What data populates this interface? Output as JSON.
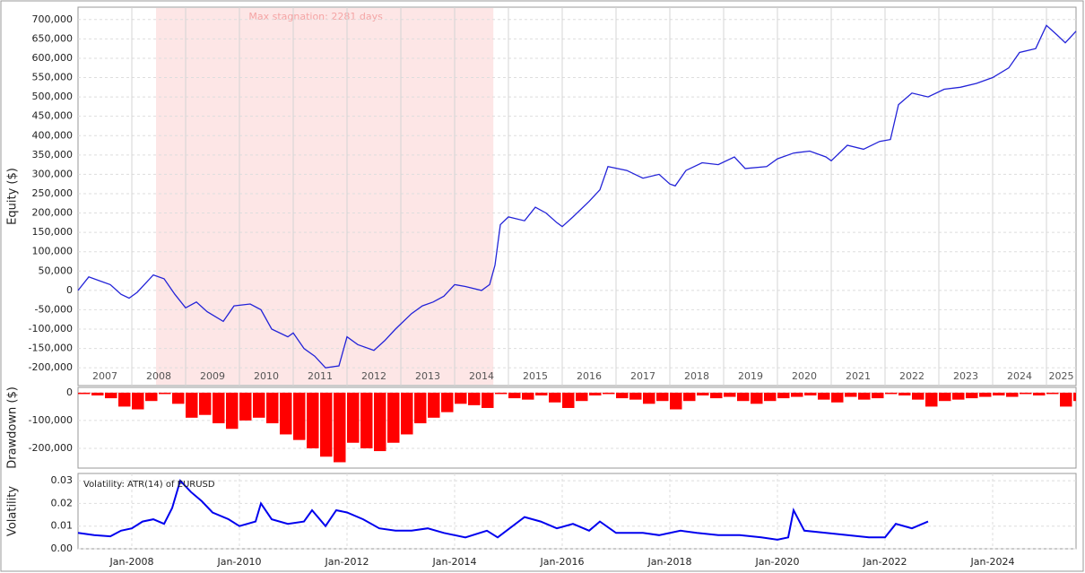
{
  "chart_data": [
    {
      "type": "line",
      "y_label": "Equity ($)",
      "annotation": "Max stagnation: 2281 days",
      "stagnation_span": [
        2008.45,
        2014.72
      ],
      "stagnation_color": "#fde6e6",
      "xlim": [
        2007.0,
        2025.55
      ],
      "xticks": [
        2007,
        2008,
        2009,
        2010,
        2011,
        2012,
        2013,
        2014,
        2015,
        2016,
        2017,
        2018,
        2019,
        2020,
        2021,
        2022,
        2023,
        2024,
        2025
      ],
      "ylim": [
        -246000,
        732000
      ],
      "yticks": [
        {
          "value": -200000,
          "label": "-200,000"
        },
        {
          "value": -150000,
          "label": "-150,000"
        },
        {
          "value": -100000,
          "label": "-100,000"
        },
        {
          "value": -50000,
          "label": "-50,000"
        },
        0,
        {
          "value": 50000,
          "label": "50,000"
        },
        {
          "value": 100000,
          "label": "100,000"
        },
        {
          "value": 150000,
          "label": "150,000"
        },
        {
          "value": 200000,
          "label": "200,000"
        },
        {
          "value": 250000,
          "label": "250,000"
        },
        {
          "value": 300000,
          "label": "300,000"
        },
        {
          "value": 350000,
          "label": "350,000"
        },
        {
          "value": 400000,
          "label": "400,000"
        },
        {
          "value": 450000,
          "label": "450,000"
        },
        {
          "value": 500000,
          "label": "500,000"
        },
        {
          "value": 550000,
          "label": "550,000"
        },
        {
          "value": 600000,
          "label": "600,000"
        },
        {
          "value": 650000,
          "label": "650,000"
        },
        {
          "value": 700000,
          "label": "700,000"
        }
      ],
      "grid": true,
      "x": [
        2007.0,
        2007.2,
        2007.4,
        2007.6,
        2007.8,
        2007.95,
        2008.1,
        2008.4,
        2008.6,
        2008.8,
        2009.0,
        2009.2,
        2009.4,
        2009.7,
        2009.9,
        2010.2,
        2010.4,
        2010.6,
        2010.9,
        2011.0,
        2011.2,
        2011.4,
        2011.6,
        2011.85,
        2012.0,
        2012.2,
        2012.5,
        2012.7,
        2012.9,
        2013.2,
        2013.4,
        2013.6,
        2013.8,
        2014.0,
        2014.2,
        2014.5,
        2014.65,
        2014.75,
        2014.85,
        2015.0,
        2015.3,
        2015.5,
        2015.7,
        2015.9,
        2016.0,
        2016.2,
        2016.5,
        2016.7,
        2016.85,
        2017.2,
        2017.5,
        2017.8,
        2018.0,
        2018.1,
        2018.3,
        2018.6,
        2018.9,
        2019.2,
        2019.4,
        2019.8,
        2020.0,
        2020.3,
        2020.6,
        2020.9,
        2021.0,
        2021.3,
        2021.6,
        2021.9,
        2022.1,
        2022.25,
        2022.5,
        2022.8,
        2023.1,
        2023.4,
        2023.7,
        2024.0,
        2024.3,
        2024.5,
        2024.8,
        2025.0,
        2025.2,
        2025.35,
        2025.55
      ],
      "series": [
        {
          "color": "#2323d8",
          "values": [
            0,
            35000,
            25000,
            15000,
            -10000,
            -20000,
            -5000,
            40000,
            30000,
            -10000,
            -45000,
            -30000,
            -55000,
            -80000,
            -40000,
            -35000,
            -50000,
            -100000,
            -120000,
            -110000,
            -150000,
            -170000,
            -200000,
            -195000,
            -120000,
            -140000,
            -155000,
            -130000,
            -100000,
            -60000,
            -40000,
            -30000,
            -15000,
            15000,
            10000,
            0,
            15000,
            65000,
            170000,
            190000,
            180000,
            215000,
            200000,
            175000,
            165000,
            190000,
            230000,
            260000,
            320000,
            310000,
            290000,
            300000,
            275000,
            270000,
            310000,
            330000,
            325000,
            345000,
            315000,
            320000,
            340000,
            355000,
            360000,
            345000,
            335000,
            375000,
            365000,
            385000,
            390000,
            480000,
            510000,
            500000,
            520000,
            525000,
            535000,
            550000,
            575000,
            615000,
            625000,
            685000,
            660000,
            640000,
            670000
          ]
        }
      ]
    },
    {
      "type": "bar",
      "y_label": "Drawdown ($)",
      "color": "#ff0000",
      "xlim": [
        2007.0,
        2025.55
      ],
      "ylim": [
        -271000,
        19000
      ],
      "yticks": [
        {
          "value": -200000,
          "label": "-200,000"
        },
        {
          "value": -100000,
          "label": "-100,000"
        },
        0
      ],
      "grid": true,
      "x": [
        2007.0,
        2007.25,
        2007.5,
        2007.75,
        2008.0,
        2008.25,
        2008.5,
        2008.75,
        2009.0,
        2009.25,
        2009.5,
        2009.75,
        2010.0,
        2010.25,
        2010.5,
        2010.75,
        2011.0,
        2011.25,
        2011.5,
        2011.75,
        2012.0,
        2012.25,
        2012.5,
        2012.75,
        2013.0,
        2013.25,
        2013.5,
        2013.75,
        2014.0,
        2014.25,
        2014.5,
        2014.75,
        2015.0,
        2015.25,
        2015.5,
        2015.75,
        2016.0,
        2016.25,
        2016.5,
        2016.75,
        2017.0,
        2017.25,
        2017.5,
        2017.75,
        2018.0,
        2018.25,
        2018.5,
        2018.75,
        2019.0,
        2019.25,
        2019.5,
        2019.75,
        2020.0,
        2020.25,
        2020.5,
        2020.75,
        2021.0,
        2021.25,
        2021.5,
        2021.75,
        2022.0,
        2022.25,
        2022.5,
        2022.75,
        2023.0,
        2023.25,
        2023.5,
        2023.75,
        2024.0,
        2024.25,
        2024.5,
        2024.75,
        2025.0,
        2025.25,
        2025.5
      ],
      "values": [
        -5000,
        -10000,
        -20000,
        -50000,
        -60000,
        -30000,
        -5000,
        -40000,
        -90000,
        -80000,
        -110000,
        -130000,
        -100000,
        -90000,
        -110000,
        -150000,
        -170000,
        -200000,
        -230000,
        -250000,
        -180000,
        -200000,
        -210000,
        -180000,
        -150000,
        -110000,
        -90000,
        -70000,
        -40000,
        -45000,
        -55000,
        -5000,
        -20000,
        -25000,
        -10000,
        -35000,
        -55000,
        -30000,
        -10000,
        -5000,
        -20000,
        -25000,
        -40000,
        -30000,
        -60000,
        -30000,
        -10000,
        -20000,
        -15000,
        -30000,
        -40000,
        -30000,
        -20000,
        -15000,
        -10000,
        -25000,
        -35000,
        -15000,
        -25000,
        -20000,
        -5000,
        -10000,
        -25000,
        -50000,
        -30000,
        -25000,
        -20000,
        -15000,
        -10000,
        -15000,
        -5000,
        -10000,
        -5000,
        -50000,
        -30000
      ]
    },
    {
      "type": "line",
      "y_label": "Volatility",
      "annotation": "Volatility: ATR(14) of EURUSD",
      "xlim": [
        2007.0,
        2025.55
      ],
      "ylim": [
        0,
        0.0332
      ],
      "yticks": [
        {
          "value": 0,
          "label": "0.00"
        },
        0.01,
        0.02,
        0.03
      ],
      "grid": true,
      "xticks": [
        {
          "value": 2008,
          "label": "Jan-2008"
        },
        {
          "value": 2010,
          "label": "Jan-2010"
        },
        {
          "value": 2012,
          "label": "Jan-2012"
        },
        {
          "value": 2014,
          "label": "Jan-2014"
        },
        {
          "value": 2016,
          "label": "Jan-2016"
        },
        {
          "value": 2018,
          "label": "Jan-2018"
        },
        {
          "value": 2020,
          "label": "Jan-2020"
        },
        {
          "value": 2022,
          "label": "Jan-2022"
        },
        {
          "value": 2024,
          "label": "Jan-2024"
        }
      ],
      "x": [
        2007.0,
        2007.3,
        2007.6,
        2007.8,
        2008.0,
        2008.2,
        2008.4,
        2008.6,
        2008.75,
        2008.9,
        2009.1,
        2009.3,
        2009.5,
        2009.8,
        2010.0,
        2010.3,
        2010.4,
        2010.6,
        2010.9,
        2011.2,
        2011.35,
        2011.6,
        2011.8,
        2012.0,
        2012.3,
        2012.6,
        2012.9,
        2013.2,
        2013.5,
        2013.8,
        2014.2,
        2014.6,
        2014.8,
        2015.3,
        2015.6,
        2015.9,
        2016.2,
        2016.5,
        2016.7,
        2017.0,
        2017.5,
        2017.8,
        2018.2,
        2018.5,
        2018.9,
        2019.3,
        2019.7,
        2020.0,
        2020.2,
        2020.3,
        2020.5,
        2020.9,
        2021.3,
        2021.7,
        2022.0,
        2022.2,
        2022.5,
        2022.8
      ],
      "series": [
        {
          "color": "#0000ee",
          "values": [
            0.007,
            0.006,
            0.0055,
            0.008,
            0.009,
            0.012,
            0.013,
            0.011,
            0.018,
            0.03,
            0.025,
            0.021,
            0.016,
            0.013,
            0.01,
            0.012,
            0.02,
            0.013,
            0.011,
            0.012,
            0.017,
            0.01,
            0.017,
            0.016,
            0.013,
            0.009,
            0.008,
            0.008,
            0.009,
            0.007,
            0.005,
            0.008,
            0.005,
            0.014,
            0.012,
            0.009,
            0.011,
            0.008,
            0.012,
            0.007,
            0.007,
            0.006,
            0.008,
            0.007,
            0.006,
            0.006,
            0.005,
            0.004,
            0.005,
            0.017,
            0.008,
            0.007,
            0.006,
            0.005,
            0.005,
            0.011,
            0.009,
            0.012
          ]
        }
      ]
    }
  ]
}
